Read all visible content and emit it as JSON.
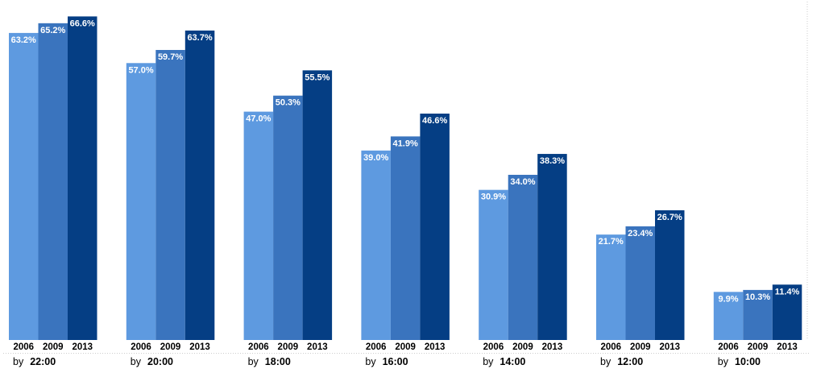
{
  "chart_data": {
    "type": "bar",
    "categories": [
      "by 22:00",
      "by 20:00",
      "by 18:00",
      "by 16:00",
      "by 14:00",
      "by 12:00",
      "by 10:00"
    ],
    "category_parts": [
      {
        "prefix": "by",
        "time": "22:00"
      },
      {
        "prefix": "by",
        "time": "20:00"
      },
      {
        "prefix": "by",
        "time": "18:00"
      },
      {
        "prefix": "by",
        "time": "16:00"
      },
      {
        "prefix": "by",
        "time": "14:00"
      },
      {
        "prefix": "by",
        "time": "12:00"
      },
      {
        "prefix": "by",
        "time": "10:00"
      }
    ],
    "series": [
      {
        "name": "2006",
        "color": "#5E9AE0",
        "values": [
          63.2,
          57.0,
          47.0,
          39.0,
          30.9,
          21.7,
          9.9
        ],
        "labels": [
          "63.2%",
          "57.0%",
          "47.0%",
          "39.0%",
          "30.9%",
          "21.7%",
          "9.9%"
        ]
      },
      {
        "name": "2009",
        "color": "#3A74BE",
        "values": [
          65.2,
          59.7,
          50.3,
          41.9,
          34.0,
          23.4,
          10.3
        ],
        "labels": [
          "65.2%",
          "59.7%",
          "50.3%",
          "41.9%",
          "34.0%",
          "23.4%",
          "10.3%"
        ]
      },
      {
        "name": "2013",
        "color": "#053E84",
        "values": [
          66.6,
          63.7,
          55.5,
          46.6,
          38.3,
          26.7,
          11.4
        ],
        "labels": [
          "66.6%",
          "63.7%",
          "55.5%",
          "46.6%",
          "38.3%",
          "26.7%",
          "11.4%"
        ]
      }
    ],
    "ylim": [
      0,
      70
    ],
    "title": "",
    "xlabel": "",
    "ylabel": "",
    "grid": false,
    "legend": "none",
    "value_labels": "inside-top",
    "colors": {
      "text_on_bar": "#ffffff",
      "axis_text": "#000000",
      "frame": "#cccccc"
    }
  }
}
